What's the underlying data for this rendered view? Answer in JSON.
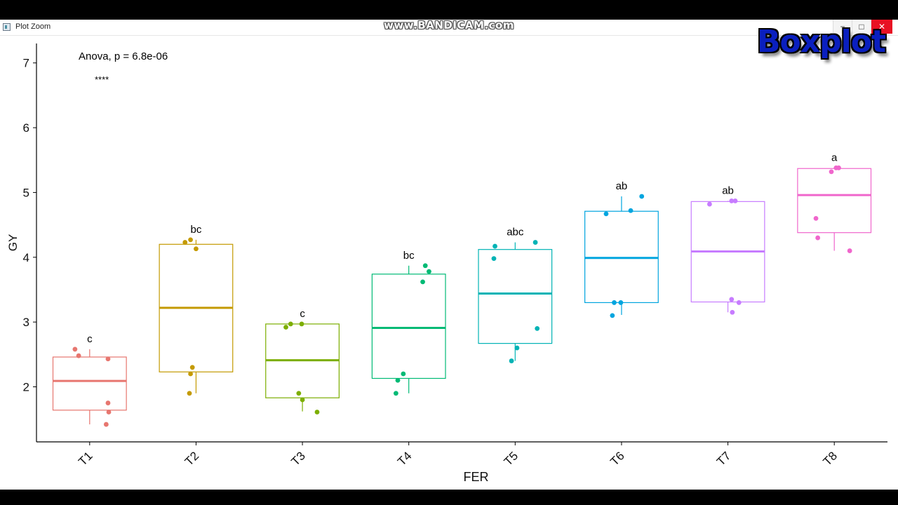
{
  "window": {
    "title": "Plot Zoom",
    "watermark": "www.BANDICAM.com",
    "overlay_title": "Boxplot",
    "controls": {
      "minimize": "−",
      "maximize": "□",
      "close": "✕"
    }
  },
  "chart_data": {
    "type": "boxplot",
    "xlabel": "FER",
    "ylabel": "GY",
    "ylim": [
      1.15,
      7.3
    ],
    "yticks": [
      2,
      3,
      4,
      5,
      6,
      7
    ],
    "categories": [
      "T1",
      "T2",
      "T3",
      "T4",
      "T5",
      "T6",
      "T7",
      "T8"
    ],
    "anova_label": "Anova, p = 6.8e-06",
    "significance": "****",
    "boxes": [
      {
        "category": "T1",
        "min": 1.42,
        "q1": 1.64,
        "median": 2.09,
        "q3": 2.46,
        "max": 2.58,
        "group_letter": "c",
        "color": "#E7766F",
        "points": [
          [
            -0.4,
            2.58
          ],
          [
            -0.3,
            2.48
          ],
          [
            0.5,
            2.43
          ],
          [
            0.5,
            1.75
          ],
          [
            0.52,
            1.61
          ],
          [
            0.45,
            1.42
          ]
        ]
      },
      {
        "category": "T2",
        "min": 1.9,
        "q1": 2.23,
        "median": 3.22,
        "q3": 4.2,
        "max": 4.27,
        "group_letter": "bc",
        "color": "#C49A00",
        "points": [
          [
            -0.3,
            4.23
          ],
          [
            -0.15,
            4.27
          ],
          [
            0.0,
            4.13
          ],
          [
            -0.1,
            2.3
          ],
          [
            -0.15,
            2.2
          ],
          [
            -0.18,
            1.9
          ]
        ]
      },
      {
        "category": "T3",
        "min": 1.62,
        "q1": 1.83,
        "median": 2.41,
        "q3": 2.97,
        "max": 2.97,
        "group_letter": "c",
        "color": "#7CAE00",
        "points": [
          [
            -0.45,
            2.92
          ],
          [
            -0.32,
            2.97
          ],
          [
            -0.02,
            2.97
          ],
          [
            -0.1,
            1.9
          ],
          [
            0.0,
            1.8
          ],
          [
            0.4,
            1.61
          ]
        ]
      },
      {
        "category": "T4",
        "min": 1.9,
        "q1": 2.13,
        "median": 2.91,
        "q3": 3.74,
        "max": 3.87,
        "group_letter": "bc",
        "color": "#00BA75",
        "points": [
          [
            0.45,
            3.87
          ],
          [
            0.55,
            3.78
          ],
          [
            0.38,
            3.62
          ],
          [
            -0.3,
            2.1
          ],
          [
            -0.35,
            1.9
          ],
          [
            -0.15,
            2.2
          ]
        ]
      },
      {
        "category": "T5",
        "min": 2.4,
        "q1": 2.67,
        "median": 3.44,
        "q3": 4.12,
        "max": 4.23,
        "group_letter": "abc",
        "color": "#00B3B5",
        "points": [
          [
            -0.55,
            4.17
          ],
          [
            -0.58,
            3.98
          ],
          [
            0.55,
            4.23
          ],
          [
            0.6,
            2.9
          ],
          [
            0.05,
            2.6
          ],
          [
            -0.1,
            2.4
          ]
        ]
      },
      {
        "category": "T6",
        "min": 3.11,
        "q1": 3.3,
        "median": 3.99,
        "q3": 4.71,
        "max": 4.94,
        "group_letter": "ab",
        "color": "#00A5DF",
        "points": [
          [
            -0.42,
            4.67
          ],
          [
            0.25,
            4.72
          ],
          [
            0.55,
            4.94
          ],
          [
            -0.2,
            3.3
          ],
          [
            -0.02,
            3.3
          ],
          [
            -0.25,
            3.1
          ]
        ]
      },
      {
        "category": "T7",
        "min": 3.15,
        "q1": 3.31,
        "median": 4.09,
        "q3": 4.86,
        "max": 4.87,
        "group_letter": "ab",
        "color": "#C77CFF",
        "points": [
          [
            -0.5,
            4.82
          ],
          [
            0.1,
            4.87
          ],
          [
            0.2,
            4.87
          ],
          [
            0.1,
            3.35
          ],
          [
            0.3,
            3.3
          ],
          [
            0.12,
            3.15
          ]
        ]
      },
      {
        "category": "T8",
        "min": 4.1,
        "q1": 4.38,
        "median": 4.96,
        "q3": 5.37,
        "max": 5.38,
        "group_letter": "a",
        "color": "#F066CC",
        "points": [
          [
            -0.08,
            5.32
          ],
          [
            0.05,
            5.38
          ],
          [
            0.12,
            5.38
          ],
          [
            -0.5,
            4.6
          ],
          [
            -0.45,
            4.3
          ],
          [
            0.42,
            4.1
          ]
        ]
      }
    ]
  }
}
